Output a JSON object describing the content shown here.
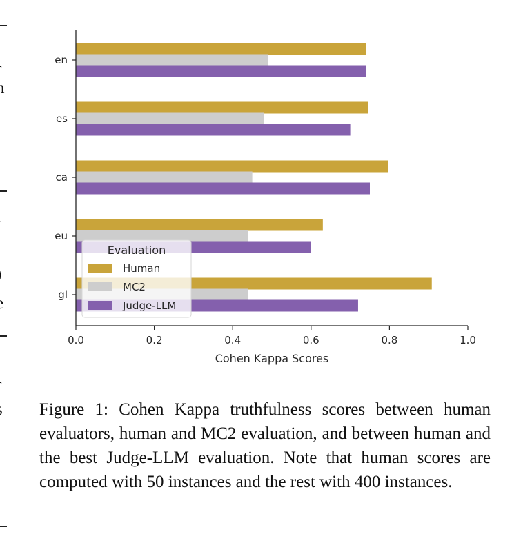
{
  "chart_data": {
    "type": "bar",
    "orientation": "horizontal",
    "categories": [
      "en",
      "es",
      "ca",
      "eu",
      "gl"
    ],
    "series": [
      {
        "name": "Human",
        "color": "#c9a43a",
        "values": [
          0.74,
          0.745,
          0.797,
          0.63,
          0.908
        ]
      },
      {
        "name": "MC2",
        "color": "#cdcdcd",
        "values": [
          0.49,
          0.48,
          0.45,
          0.44,
          0.44
        ]
      },
      {
        "name": "Judge-LLM",
        "color": "#8460ad",
        "values": [
          0.74,
          0.7,
          0.75,
          0.6,
          0.72
        ]
      }
    ],
    "xlabel": "Cohen Kappa Scores",
    "ylabel": "",
    "xlim": [
      0.0,
      1.0
    ],
    "xticks": [
      "0.0",
      "0.2",
      "0.4",
      "0.6",
      "0.8",
      "1.0"
    ],
    "grid": false,
    "legend": {
      "title": "Evaluation",
      "placement": "lower-left"
    }
  },
  "caption": "Figure 1: Cohen Kappa truthfulness scores between human evaluators, human and MC2 evaluation, and between human and the best Judge-LLM evaluation. Note that human scores are computed with 50 instances and the rest with 400 instances.",
  "margin_fragments": [
    "r",
    "n",
    "l",
    "l",
    ")",
    "e",
    ",",
    "r",
    "s"
  ]
}
